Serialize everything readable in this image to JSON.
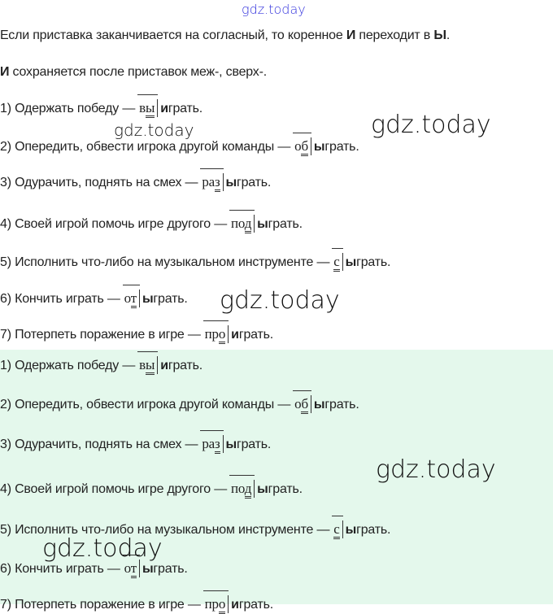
{
  "watermark": "gdz.today",
  "intro": {
    "l1_a": "Если приставка заканчивается на согласный, то коренное ",
    "l1_b": "И",
    "l1_c": " переходит в ",
    "l1_d": "Ы",
    "l1_e": ".",
    "l2_a": "И",
    "l2_b": " сохраняется после приставок меж-, сверх-."
  },
  "items": [
    {
      "num": "1) Одержать победу —",
      "pre": "в",
      "pre_u": "ы",
      "bold": "и",
      "rest": "грать."
    },
    {
      "num": "2) Опередить, обвести игрока другой команды —",
      "pre": "о",
      "pre_u": "б",
      "bold": "ы",
      "rest": "грать."
    },
    {
      "num": "3) Одурачить, поднять на смех —",
      "pre": "ра",
      "pre_u": "з",
      "bold": "ы",
      "rest": "грать."
    },
    {
      "num": "4) Своей игрой помочь игре другого —",
      "pre": "по",
      "pre_u": "д",
      "bold": "ы",
      "rest": "грать."
    },
    {
      "num": "5) Исполнить что-либо на музыкальном инструменте —",
      "pre": "",
      "pre_u": "с",
      "bold": "ы",
      "rest": "грать."
    },
    {
      "num": "6) Кончить играть —",
      "pre": "о",
      "pre_u": "т",
      "bold": "ы",
      "rest": "грать."
    },
    {
      "num": "7) Потерпеть поражение в игре —",
      "pre": "пр",
      "pre_u": "о",
      "bold": "и",
      "rest": "грать."
    }
  ],
  "colors": {
    "answer_bg": "#e4f8ec",
    "top_watermark": "#3333dd"
  }
}
